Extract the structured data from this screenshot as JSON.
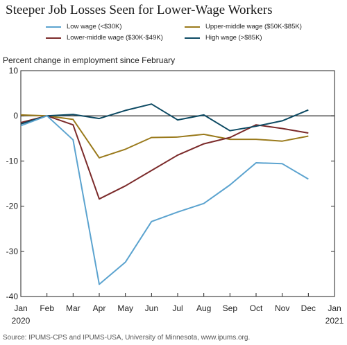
{
  "chart_data": {
    "type": "line",
    "title": "Steeper Job Losses Seen for Lower-Wage Workers",
    "ylabel": "Percent change in employment since February",
    "xlabel": "",
    "x_tick_labels": [
      [
        "Jan",
        "2020"
      ],
      [
        "Feb",
        ""
      ],
      [
        "Mar",
        ""
      ],
      [
        "Apr",
        ""
      ],
      [
        "May",
        ""
      ],
      [
        "Jun",
        ""
      ],
      [
        "Jul",
        ""
      ],
      [
        "Aug",
        ""
      ],
      [
        "Sep",
        ""
      ],
      [
        "Oct",
        ""
      ],
      [
        "Nov",
        ""
      ],
      [
        "Dec",
        ""
      ],
      [
        "Jan",
        "2021"
      ]
    ],
    "y_ticks": [
      10,
      0,
      -10,
      -20,
      -30,
      -40
    ],
    "ylim": [
      -40,
      10
    ],
    "zero_line": true,
    "grid": false,
    "legend_position": "top",
    "categories": [
      "Jan",
      "Feb",
      "Mar",
      "Apr",
      "May",
      "Jun",
      "Jul",
      "Aug",
      "Sep",
      "Oct",
      "Nov",
      "Dec"
    ],
    "series": [
      {
        "name": "Low wage (<$30K)",
        "color": "#5ba3cf",
        "values": [
          -2.2,
          0,
          -5.3,
          -37.3,
          -32.4,
          -23.4,
          -21.3,
          -19.4,
          -15.3,
          -10.4,
          -10.6,
          -14.0
        ]
      },
      {
        "name": "Lower-middle wage ($30K-$49K)",
        "color": "#7b2a2a",
        "values": [
          -1.5,
          0,
          -2.0,
          -18.4,
          -15.5,
          -12.1,
          -8.7,
          -6.2,
          -4.8,
          -2.0,
          -2.8,
          -3.8
        ]
      },
      {
        "name": "Upper-middle wage ($50K-$85K)",
        "color": "#9a7a1c",
        "values": [
          0.2,
          0,
          -0.8,
          -9.3,
          -7.4,
          -4.8,
          -4.7,
          -4.1,
          -5.2,
          -5.2,
          -5.6,
          -4.5
        ]
      },
      {
        "name": "High wage (>$85K)",
        "color": "#0d4a63",
        "values": [
          -1.8,
          0,
          0.3,
          -0.6,
          1.2,
          2.6,
          -0.9,
          0.2,
          -3.3,
          -2.3,
          -1.1,
          1.3
        ]
      }
    ]
  },
  "source": "Source: IPUMS-CPS and IPUMS-USA, University of Minnesota, www.ipums.org."
}
